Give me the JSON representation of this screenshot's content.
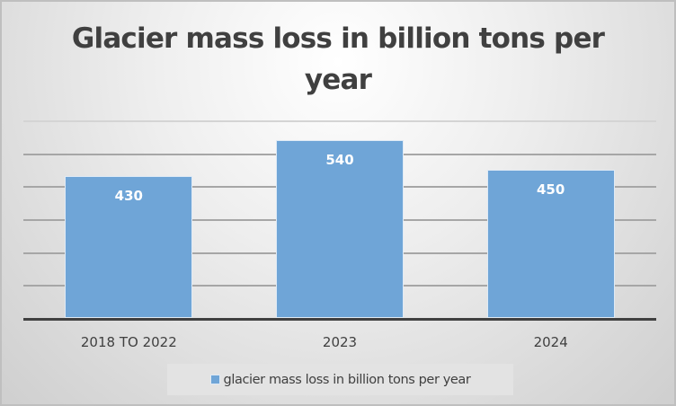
{
  "chart_data": {
    "type": "bar",
    "title": "Glacier mass loss in billion tons per year",
    "categories": [
      "2018 TO 2022",
      "2023",
      "2024"
    ],
    "series": [
      {
        "name": "glacier mass loss in billion tons per year",
        "values": [
          430,
          540,
          450
        ],
        "color": "#6fa5d7"
      }
    ],
    "values": [
      430,
      540,
      450
    ],
    "data_labels": [
      "430",
      "540",
      "450"
    ],
    "xlabel": "",
    "ylabel": "",
    "ylim": [
      0,
      600
    ],
    "y_gridline_step": 100,
    "y_tick_labels_visible": false,
    "grid": true,
    "legend_position": "bottom"
  },
  "chart": {
    "title": "Glacier mass loss in billion tons per year",
    "legend_label": "glacier mass loss in billion tons per year",
    "bars": [
      {
        "category": "2018 TO 2022",
        "label": "430"
      },
      {
        "category": "2023",
        "label": "540"
      },
      {
        "category": "2024",
        "label": "450"
      }
    ]
  },
  "colors": {
    "bar": "#6fa5d7",
    "title": "#404040",
    "axis": "#404040",
    "gridline": "#a6a6a6"
  }
}
